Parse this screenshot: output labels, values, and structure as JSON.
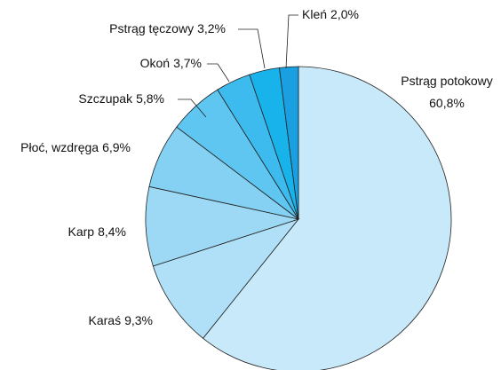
{
  "chart_data": {
    "type": "pie",
    "categories": [
      "Pstrąg potokowy",
      "Karaś",
      "Karp",
      "Płoć, wzdręga",
      "Szczupak",
      "Okoń",
      "Pstrąg tęczowy",
      "Kleń"
    ],
    "values": [
      60.8,
      9.3,
      8.4,
      6.9,
      5.8,
      3.7,
      3.2,
      2.0
    ],
    "value_labels": [
      "60,8%",
      "9,3%",
      "8,4%",
      "6,9%",
      "5,8%",
      "3,7%",
      "3,2%",
      "2,0%"
    ],
    "colors": [
      "#c8e9f9",
      "#b0e0f7",
      "#9dd9f5",
      "#85d1f3",
      "#5ec6f0",
      "#3dbbee",
      "#19b3ec",
      "#1a9fe0"
    ]
  }
}
